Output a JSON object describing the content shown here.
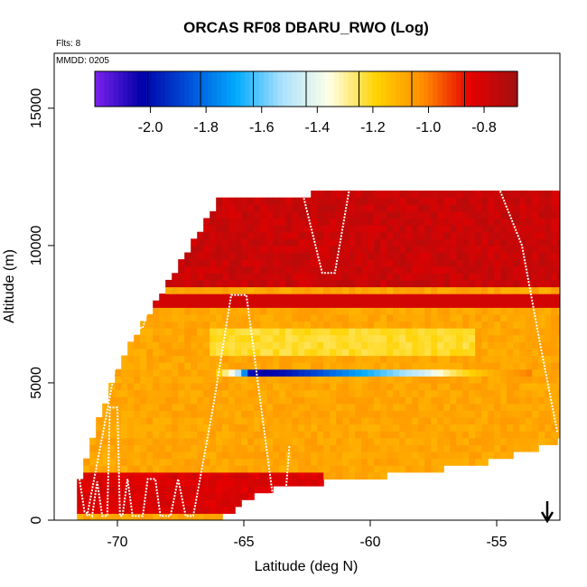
{
  "chart_data": {
    "type": "heatmap",
    "title": "ORCAS RF08 DBARU_RWO (Log)",
    "flights_note": "Flts: 8",
    "date_note": "MMDD: 0205",
    "xlabel": "Latitude (deg N)",
    "ylabel": "Altitude (m)",
    "xlim": [
      -72.5,
      -52.5
    ],
    "ylim": [
      0,
      17000
    ],
    "x_ticks": [
      -70,
      -65,
      -60,
      -55
    ],
    "x_tick_labels": [
      "-70",
      "-65",
      "-60",
      "-55"
    ],
    "y_ticks": [
      0,
      5000,
      10000,
      15000
    ],
    "y_tick_labels": [
      "0",
      "5000",
      "10000",
      "15000"
    ],
    "colorbar": {
      "range": [
        -2.2,
        -0.68
      ],
      "ticks": [
        -2.0,
        -1.8,
        -1.6,
        -1.4,
        -1.2,
        -1.0,
        -0.8
      ],
      "tick_labels": [
        "-2.0",
        "-1.8",
        "-1.6",
        "-1.4",
        "-1.2",
        "-1.0",
        "-0.8"
      ],
      "stops": [
        "#7b22ee",
        "#0000a8",
        "#0050d8",
        "#00aaff",
        "#aee2ff",
        "#ffffe6",
        "#ffd300",
        "#ff8c00",
        "#e60000",
        "#a01010"
      ]
    },
    "arrow_latitude": -53,
    "field": {
      "lat_range": [
        -71.6,
        -52.2
      ],
      "lat_step": 0.25,
      "alt_step": 250,
      "top_boundary": [
        [
          -71.6,
          1500
        ],
        [
          -70.5,
          4500
        ],
        [
          -69.5,
          6500
        ],
        [
          -68.7,
          7700
        ],
        [
          -67.5,
          9500
        ],
        [
          -66.0,
          11700
        ],
        [
          -52.2,
          11900
        ]
      ],
      "bottom_boundary": [
        [
          -71.6,
          150
        ],
        [
          -66.0,
          150
        ],
        [
          -64.5,
          1200
        ],
        [
          -62.0,
          1500
        ],
        [
          -58.0,
          1900
        ],
        [
          -55.0,
          2300
        ],
        [
          -52.4,
          3100
        ],
        [
          -52.2,
          3100
        ]
      ],
      "ambient_value": -1.08,
      "upper_band_value": -0.78,
      "upper_band_alt": [
        8300,
        12000
      ],
      "mid_band_value": -0.8,
      "mid_band_alt": [
        7600,
        8100
      ],
      "light_band": {
        "alt": [
          6000,
          6900
        ],
        "lat": [
          -66.5,
          -56.0
        ],
        "value": -1.22
      },
      "low_band": {
        "alt": [
          150,
          1500
        ],
        "lat": [
          -71.6,
          -62.0
        ],
        "value": -0.82
      },
      "stripe": {
        "alt": 5200,
        "lat": [
          -66.2,
          -53.8
        ],
        "profile": [
          [
            -66.2,
            -1.15
          ],
          [
            -65.4,
            -1.45
          ],
          [
            -64.8,
            -2.05
          ],
          [
            -63.5,
            -2.0
          ],
          [
            -61.5,
            -1.8
          ],
          [
            -59.5,
            -1.6
          ],
          [
            -58.0,
            -1.45
          ],
          [
            -56.8,
            -1.25
          ],
          [
            -55.5,
            -1.12
          ],
          [
            -53.8,
            -1.0
          ]
        ]
      }
    },
    "flight_track": [
      [
        -71.5,
        1500
      ],
      [
        -71.3,
        300
      ],
      [
        -71.0,
        150
      ],
      [
        -70.8,
        1400
      ],
      [
        -70.6,
        150
      ],
      [
        -70.4,
        150
      ],
      [
        -70.3,
        4100
      ],
      [
        -70.0,
        4100
      ],
      [
        -69.9,
        150
      ],
      [
        -69.8,
        150
      ],
      [
        -69.6,
        1500
      ],
      [
        -69.4,
        150
      ],
      [
        -69.0,
        150
      ],
      [
        -68.8,
        1500
      ],
      [
        -68.5,
        1500
      ],
      [
        -68.3,
        150
      ],
      [
        -67.9,
        150
      ],
      [
        -67.6,
        1500
      ],
      [
        -67.3,
        150
      ],
      [
        -67.0,
        150
      ],
      [
        -66.2,
        4200
      ],
      [
        -65.5,
        8200
      ],
      [
        -64.9,
        8200
      ],
      [
        -63.8,
        500
      ],
      [
        -63.5,
        150
      ],
      [
        -63.4,
        300
      ],
      [
        -63.2,
        2700
      ]
    ],
    "flight_track_2": [
      [
        -71.2,
        150
      ],
      [
        -70.4,
        4000
      ],
      [
        -69.8,
        7000
      ],
      [
        -69.0,
        7000
      ],
      [
        -68.5,
        8600
      ],
      [
        -68.2,
        8600
      ],
      [
        -67.6,
        11700
      ],
      [
        -65.5,
        12000
      ],
      [
        -62.7,
        12000
      ],
      [
        -61.9,
        9000
      ],
      [
        -61.4,
        9000
      ],
      [
        -60.8,
        12200
      ],
      [
        -55.0,
        12300
      ],
      [
        -54.0,
        10000
      ],
      [
        -53.3,
        6500
      ],
      [
        -52.6,
        3200
      ]
    ]
  }
}
